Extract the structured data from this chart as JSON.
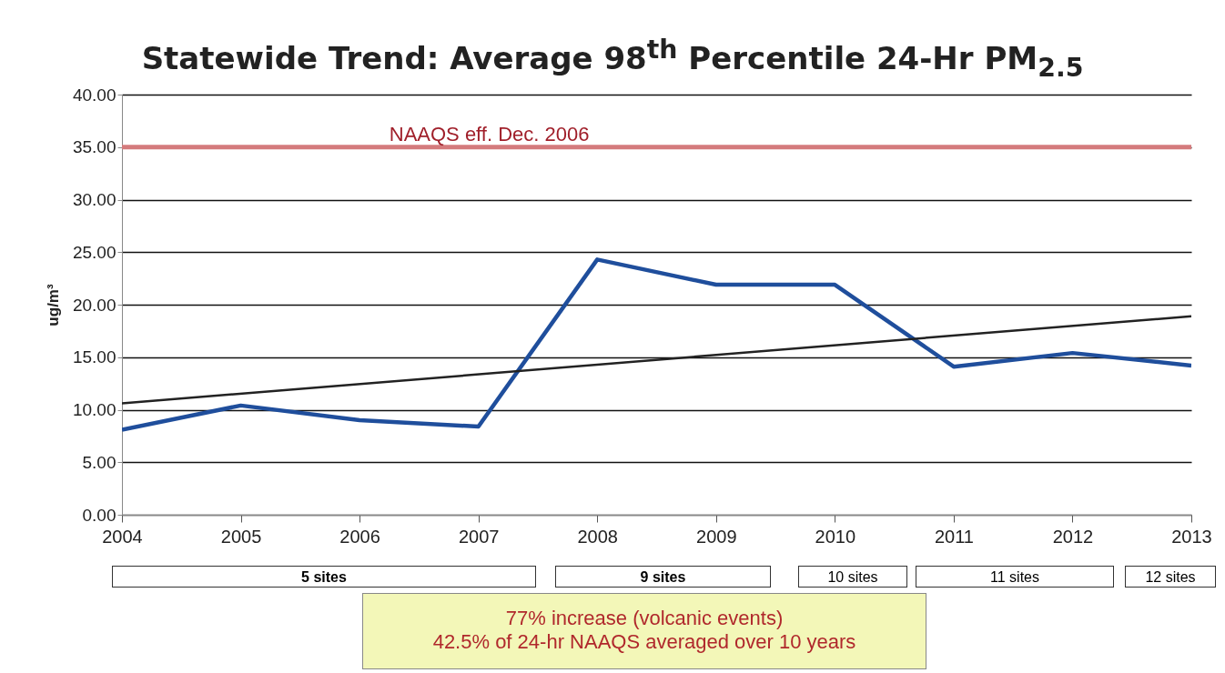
{
  "chart_data": {
    "type": "line",
    "title": "Statewide Trend: Average 98$^{th}$ Percentile 24-Hr PM$_{2.5}$",
    "ylabel": "ug/m³",
    "x": [
      2004,
      2005,
      2006,
      2007,
      2008,
      2009,
      2010,
      2011,
      2012,
      2013
    ],
    "series": [
      {
        "color": "#1f4e9c",
        "values": [
          8.1,
          10.4,
          9.0,
          8.4,
          24.3,
          21.9,
          21.9,
          14.1,
          15.4,
          14.2
        ]
      },
      {
        "type": "line",
        "color": "#222222",
        "x": [
          2004,
          2013
        ],
        "values": [
          10.6,
          18.9
        ]
      }
    ],
    "xlim": [
      2004,
      2013
    ],
    "xticks": [
      2004,
      2005,
      2006,
      2007,
      2008,
      2009,
      2010,
      2011,
      2012,
      2013
    ],
    "ylim": [
      0,
      40
    ],
    "yticks": [
      {
        "value": 0,
        "label": "0.00"
      },
      {
        "value": 5,
        "label": "5.00"
      },
      {
        "value": 10,
        "label": "10.00"
      },
      {
        "value": 15,
        "label": "15.00"
      },
      {
        "value": 20,
        "label": "20.00"
      },
      {
        "value": 25,
        "label": "25.00"
      },
      {
        "value": 30,
        "label": "30.00"
      },
      {
        "value": 35,
        "label": "35.00"
      },
      {
        "value": 40,
        "label": "40.00"
      }
    ],
    "grid": "y",
    "ref_lines": [
      {
        "axis": "y",
        "value": 35,
        "label": "NAAQS eff. Dec. 2006",
        "color": "#d47b7d"
      }
    ],
    "annotations": [
      "5 sites",
      "9 sites",
      "10 sites",
      "11 sites",
      "12 sites",
      "77% increase (volcanic events)",
      "42.5% of 24-hr NAAQS averaged over 10 years"
    ]
  }
}
